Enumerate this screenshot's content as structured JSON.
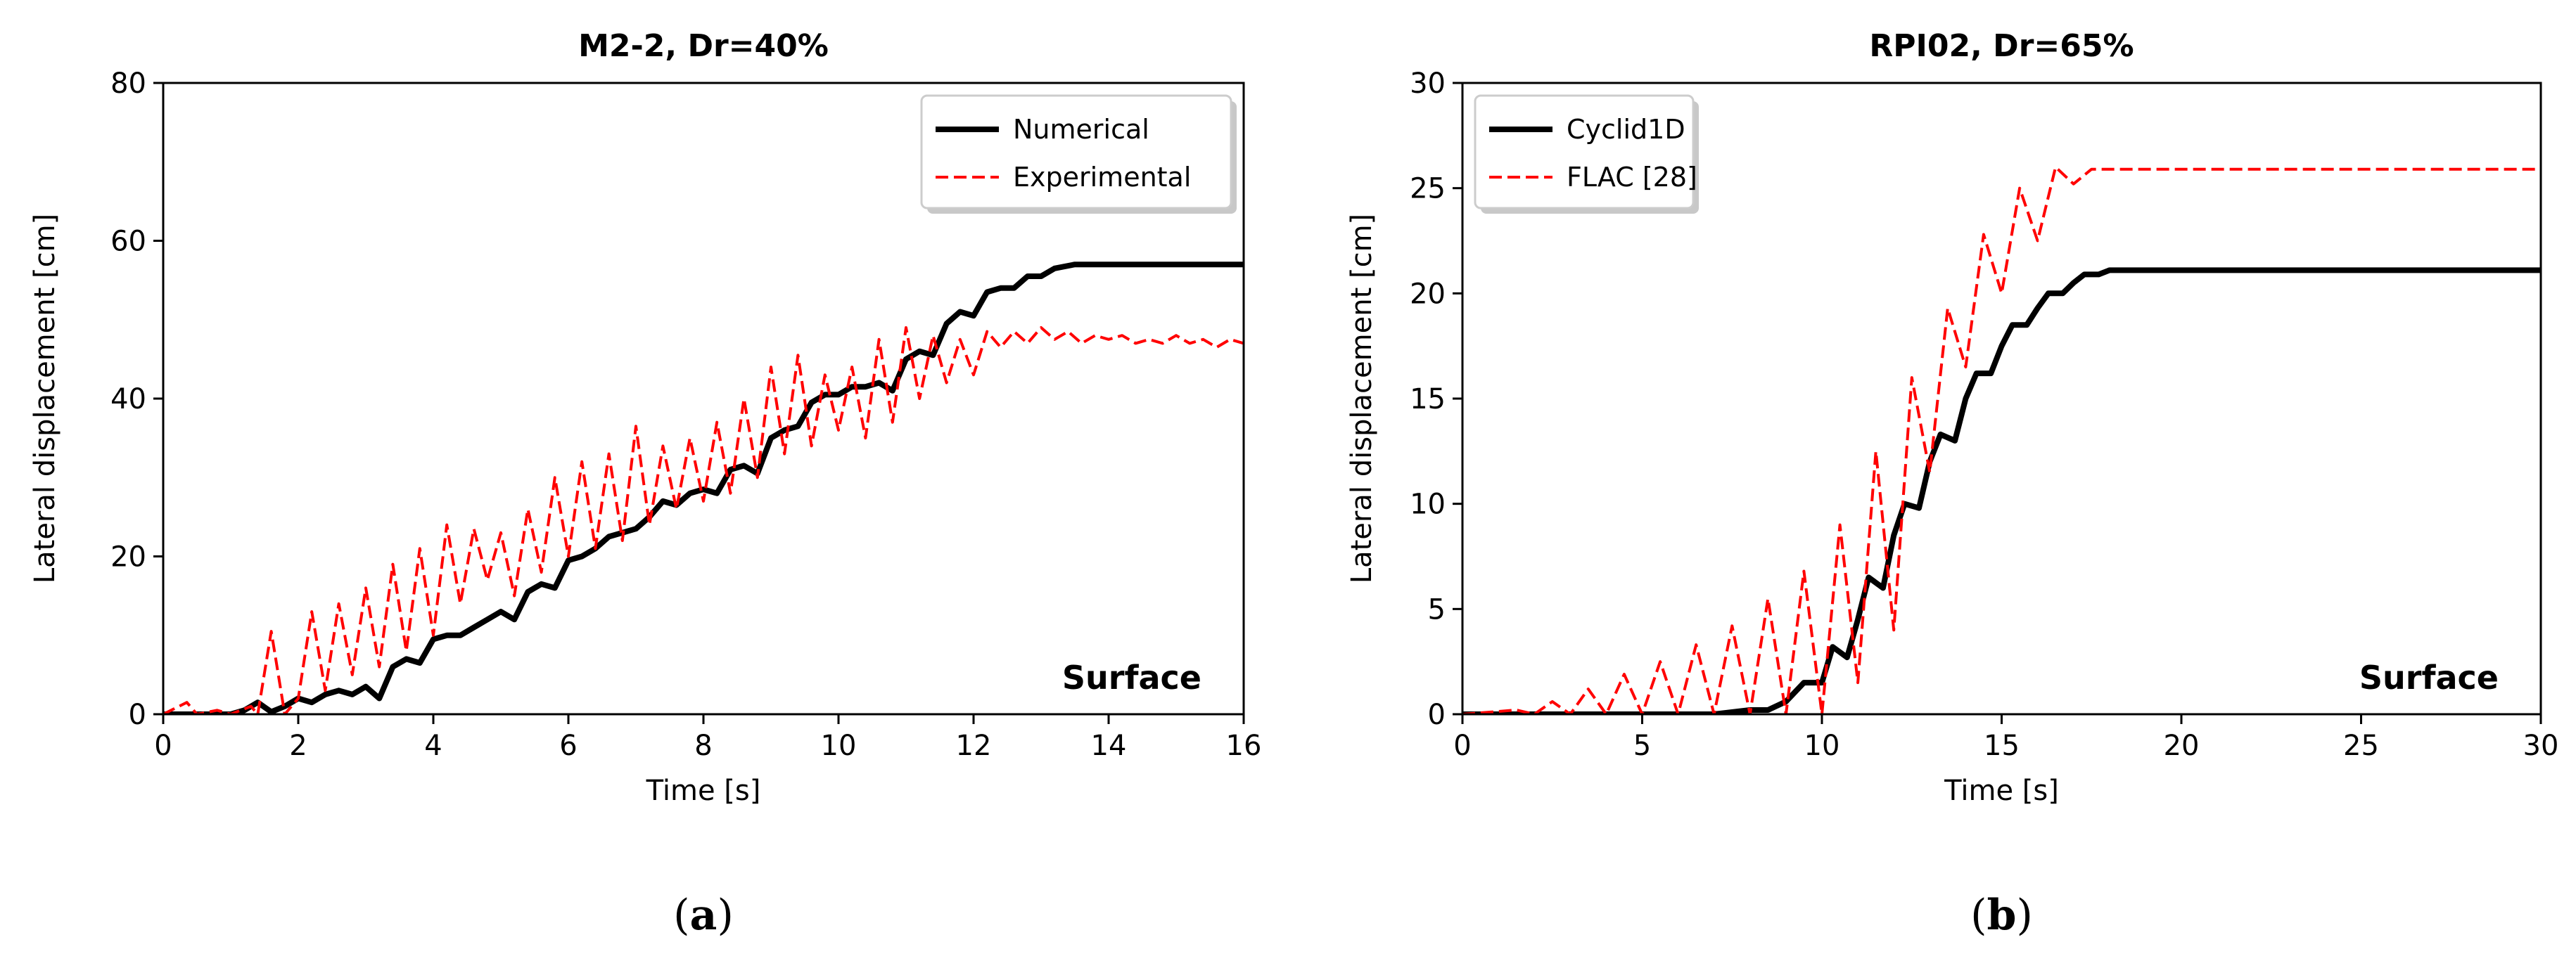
{
  "chart_data": [
    {
      "id": "a",
      "type": "line",
      "title": "M2-2, Dr=40%",
      "xlabel": "Time [s]",
      "ylabel": "Lateral displacement [cm]",
      "xlim": [
        0,
        16
      ],
      "ylim": [
        0,
        80
      ],
      "xticks": [
        0,
        2,
        4,
        6,
        8,
        10,
        12,
        14,
        16
      ],
      "yticks": [
        0,
        20,
        40,
        60,
        80
      ],
      "annotation": "Surface",
      "panel_label": "a",
      "legend_position": "top-right",
      "series": [
        {
          "name": "Numerical",
          "color": "#000000",
          "style": "solid",
          "x": [
            0,
            0.5,
            1.0,
            1.2,
            1.4,
            1.6,
            1.8,
            2.0,
            2.2,
            2.4,
            2.6,
            2.8,
            3.0,
            3.2,
            3.4,
            3.6,
            3.8,
            4.0,
            4.2,
            4.4,
            4.6,
            4.8,
            5.0,
            5.2,
            5.4,
            5.6,
            5.8,
            6.0,
            6.2,
            6.4,
            6.6,
            6.8,
            7.0,
            7.2,
            7.4,
            7.6,
            7.8,
            8.0,
            8.2,
            8.4,
            8.6,
            8.8,
            9.0,
            9.2,
            9.4,
            9.6,
            9.8,
            10.0,
            10.2,
            10.4,
            10.6,
            10.8,
            11.0,
            11.2,
            11.4,
            11.6,
            11.8,
            12.0,
            12.2,
            12.4,
            12.6,
            12.8,
            13.0,
            13.2,
            13.5,
            14.0,
            15.0,
            16.0
          ],
          "y": [
            0,
            0,
            0,
            0.5,
            1.5,
            0.3,
            1.0,
            2.0,
            1.5,
            2.5,
            3.0,
            2.5,
            3.5,
            2.0,
            6.0,
            7.0,
            6.5,
            9.5,
            10.0,
            10.0,
            11.0,
            12.0,
            13.0,
            12.0,
            15.5,
            16.5,
            16.0,
            19.5,
            20.0,
            21.0,
            22.5,
            23.0,
            23.5,
            25.0,
            27.0,
            26.5,
            28.0,
            28.5,
            28.0,
            31.0,
            31.5,
            30.5,
            35.0,
            36.0,
            36.5,
            39.5,
            40.5,
            40.5,
            41.5,
            41.5,
            42.0,
            41.0,
            45.0,
            46.0,
            45.5,
            49.5,
            51.0,
            50.5,
            53.5,
            54.0,
            54.0,
            55.5,
            55.5,
            56.5,
            57.0,
            57.0,
            57.0,
            57.0
          ]
        },
        {
          "name": "Experimental",
          "color": "#ff0000",
          "style": "dashed",
          "x": [
            0,
            0.35,
            0.5,
            0.8,
            1.0,
            1.3,
            1.4,
            1.6,
            1.8,
            2.0,
            2.2,
            2.4,
            2.6,
            2.8,
            3.0,
            3.2,
            3.4,
            3.6,
            3.8,
            4.0,
            4.2,
            4.4,
            4.6,
            4.8,
            5.0,
            5.2,
            5.4,
            5.6,
            5.8,
            6.0,
            6.2,
            6.4,
            6.6,
            6.8,
            7.0,
            7.2,
            7.4,
            7.6,
            7.8,
            8.0,
            8.2,
            8.4,
            8.6,
            8.8,
            9.0,
            9.2,
            9.4,
            9.6,
            9.8,
            10.0,
            10.2,
            10.4,
            10.6,
            10.8,
            11.0,
            11.2,
            11.4,
            11.6,
            11.8,
            12.0,
            12.2,
            12.4,
            12.6,
            12.8,
            13.0,
            13.2,
            13.4,
            13.6,
            13.8,
            14.0,
            14.2,
            14.4,
            14.6,
            14.8,
            15.0,
            15.2,
            15.4,
            15.6,
            15.8,
            16.0
          ],
          "y": [
            0,
            1.5,
            0,
            0.5,
            0,
            1.0,
            0,
            10.5,
            0,
            2.0,
            13.0,
            3.0,
            14.0,
            5.0,
            16.0,
            6.0,
            19.0,
            8.0,
            21.0,
            10.0,
            24.0,
            14.0,
            23.5,
            17.0,
            23.0,
            15.0,
            26.0,
            18.0,
            30.0,
            20.0,
            32.0,
            21.0,
            33.0,
            22.0,
            36.5,
            24.0,
            34.0,
            26.0,
            35.0,
            27.0,
            37.0,
            28.0,
            40.0,
            30.0,
            44.0,
            33.0,
            45.5,
            34.0,
            43.0,
            36.0,
            44.0,
            35.0,
            47.5,
            37.0,
            49.0,
            40.0,
            48.0,
            42.0,
            47.5,
            43.0,
            48.5,
            46.5,
            48.5,
            47.0,
            49.0,
            47.5,
            48.5,
            47.0,
            48.0,
            47.5,
            48.0,
            47.0,
            47.5,
            47.0,
            48.0,
            47.0,
            47.5,
            46.5,
            47.5,
            47.0
          ]
        }
      ]
    },
    {
      "id": "b",
      "type": "line",
      "title": "RPI02, Dr=65%",
      "xlabel": "Time [s]",
      "ylabel": "Lateral displacement [cm]",
      "xlim": [
        0,
        30
      ],
      "ylim": [
        0,
        30
      ],
      "xticks": [
        0,
        5,
        10,
        15,
        20,
        25,
        30
      ],
      "yticks": [
        0,
        5,
        10,
        15,
        20,
        25,
        30
      ],
      "annotation": "Surface",
      "panel_label": "b",
      "legend_position": "top-left",
      "series": [
        {
          "name": "Cyclid1D",
          "color": "#000000",
          "style": "solid",
          "x": [
            0,
            7.0,
            7.5,
            8.0,
            8.5,
            9.0,
            9.5,
            10.0,
            10.3,
            10.7,
            11.0,
            11.3,
            11.7,
            12.0,
            12.3,
            12.7,
            13.0,
            13.3,
            13.7,
            14.0,
            14.3,
            14.7,
            15.0,
            15.3,
            15.7,
            16.0,
            16.3,
            16.7,
            17.0,
            17.3,
            17.7,
            18.0,
            20.0,
            25.0,
            30.0
          ],
          "y": [
            0,
            0,
            0.1,
            0.2,
            0.2,
            0.6,
            1.5,
            1.5,
            3.2,
            2.7,
            4.5,
            6.5,
            6.0,
            8.5,
            10.0,
            9.8,
            12.0,
            13.3,
            13.0,
            15.0,
            16.2,
            16.2,
            17.5,
            18.5,
            18.5,
            19.3,
            20.0,
            20.0,
            20.5,
            20.9,
            20.9,
            21.1,
            21.1,
            21.1,
            21.1
          ]
        },
        {
          "name": "FLAC [28]",
          "color": "#ff0000",
          "style": "dashed",
          "x": [
            0,
            1.5,
            2.0,
            2.5,
            3.0,
            3.5,
            4.0,
            4.5,
            5.0,
            5.5,
            6.0,
            6.5,
            7.0,
            7.5,
            8.0,
            8.5,
            9.0,
            9.5,
            10.0,
            10.5,
            11.0,
            11.5,
            12.0,
            12.5,
            13.0,
            13.5,
            14.0,
            14.5,
            15.0,
            15.5,
            16.0,
            16.5,
            17.0,
            17.5,
            18.0,
            20.0,
            25.0,
            30.0
          ],
          "y": [
            0,
            0.2,
            0,
            0.6,
            0,
            1.2,
            0,
            1.9,
            0,
            2.5,
            0,
            3.3,
            0,
            4.2,
            0,
            5.5,
            0,
            6.8,
            0,
            9.0,
            1.5,
            12.5,
            4.0,
            16.0,
            11.5,
            19.3,
            16.5,
            22.8,
            20.0,
            25.0,
            22.5,
            26.0,
            25.2,
            25.9,
            25.9,
            25.9,
            25.9,
            25.9
          ]
        }
      ]
    }
  ]
}
